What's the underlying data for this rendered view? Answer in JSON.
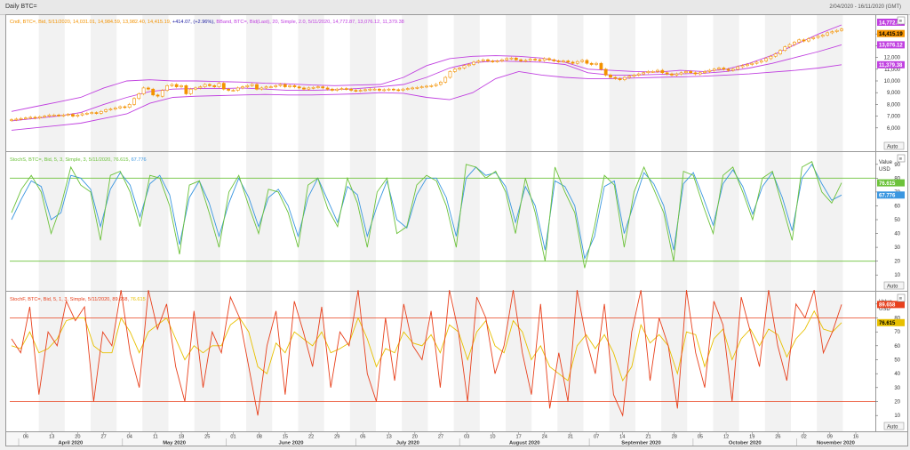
{
  "window": {
    "title": "Daily BTC=",
    "date_range": "2/04/2020 - 16/11/2020 (GMT)"
  },
  "colors": {
    "candle": "#f39200",
    "bband": "#c040e0",
    "stoch_k": "#6cc23a",
    "stoch_d": "#3a96e0",
    "stochf_k": "#e8401c",
    "stochf_d": "#e8c000",
    "level": "#6cc23a",
    "level_f": "#e8401c",
    "band": "#f2f2f2"
  },
  "panes": [
    {
      "id": "price",
      "legend": [
        {
          "text": "Cndl, BTC=, Bid, 5/11/2020, 14,031.01, 14,984.59, 13,982.40, 14,415.19,",
          "color": "#f39200"
        },
        {
          "text": "+414.07, (+2.96%),",
          "color": "#1a1aa0"
        },
        {
          "text": "BBand, BTC=, Bid(Last), 20, Simple, 2.0, 5/11/2020, 14,772.87, 13,076.12, 11,379.38",
          "color": "#c040e0"
        }
      ],
      "ticks": [
        "6,000",
        "7,000",
        "8,000",
        "9,000",
        "10,000",
        "11,000",
        "12,000",
        "13,000",
        "14,000"
      ],
      "value_tags": [
        {
          "text": "14,772.87",
          "bg": "#c040e0",
          "fg": "#ffffff"
        },
        {
          "text": "14,415.19",
          "bg": "#f39200",
          "fg": "#000000"
        },
        {
          "text": "13,076.12",
          "bg": "#c040e0",
          "fg": "#ffffff"
        },
        {
          "text": "11,379.38",
          "bg": "#c040e0",
          "fg": "#ffffff"
        }
      ],
      "auto_label": "Auto"
    },
    {
      "id": "stoch",
      "legend": [
        {
          "text": "StochS, BTC=, Bid, 5, 3, Simple, 3, 5/11/2020, 76.615, ",
          "color": "#6cc23a"
        },
        {
          "text": "67.776",
          "color": "#3a96e0"
        }
      ],
      "header": [
        "Value",
        "USD"
      ],
      "ticks": [
        "10",
        "20",
        "30",
        "40",
        "50",
        "60",
        "70",
        "80",
        "90"
      ],
      "value_tags": [
        {
          "text": "76.615",
          "bg": "#6cc23a",
          "fg": "#ffffff"
        },
        {
          "text": "67.776",
          "bg": "#3a96e0",
          "fg": "#ffffff"
        }
      ],
      "auto_label": "Auto"
    },
    {
      "id": "stochf",
      "legend": [
        {
          "text": "StochF, BTC=, Bid, 5, 1, 3, Simple, 5/11/2020, 89.658, ",
          "color": "#e8401c"
        },
        {
          "text": "76.615",
          "color": "#e8c000"
        }
      ],
      "header": [
        "Value",
        "USD"
      ],
      "ticks": [
        "10",
        "20",
        "30",
        "40",
        "50",
        "60",
        "70",
        "80",
        "90"
      ],
      "value_tags": [
        {
          "text": "89.658",
          "bg": "#e8401c",
          "fg": "#ffffff"
        },
        {
          "text": "76.615",
          "bg": "#e8c000",
          "fg": "#000000"
        }
      ],
      "auto_label": "Auto"
    }
  ],
  "x_axis": {
    "days": [
      "06",
      "13",
      "20",
      "27",
      "04",
      "11",
      "18",
      "25",
      "01",
      "08",
      "15",
      "22",
      "29",
      "06",
      "13",
      "20",
      "27",
      "03",
      "10",
      "17",
      "24",
      "31",
      "07",
      "14",
      "21",
      "28",
      "05",
      "12",
      "19",
      "26",
      "02",
      "09",
      "16"
    ],
    "months": [
      "April 2020",
      "May 2020",
      "June 2020",
      "July 2020",
      "August 2020",
      "September 2020",
      "October 2020",
      "November 2020"
    ]
  },
  "chart_data": [
    {
      "type": "candlestick",
      "title": "Daily BTC=",
      "x_start": "2020-04-02",
      "x_end": "2020-11-05",
      "ylim": [
        5000,
        15000
      ],
      "close_approx": [
        6700,
        6750,
        6800,
        6850,
        6900,
        6850,
        6950,
        7000,
        7100,
        7100,
        7050,
        7100,
        7150,
        7000,
        7100,
        7200,
        7250,
        7300,
        7250,
        7400,
        7550,
        7600,
        7700,
        7800,
        7750,
        8000,
        8500,
        8900,
        9400,
        9300,
        8800,
        8700,
        9200,
        9600,
        9700,
        9500,
        9600,
        8900,
        9300,
        9400,
        9500,
        9700,
        9600,
        9500,
        9800,
        9300,
        9200,
        9200,
        9400,
        9500,
        9600,
        9700,
        9300,
        9400,
        9500,
        9500,
        9600,
        9700,
        9500,
        9600,
        9500,
        9400,
        9300,
        9400,
        9450,
        9500,
        9400,
        9300,
        9200,
        9300,
        9350,
        9300,
        9200,
        9150,
        9200,
        9250,
        9300,
        9300,
        9200,
        9250,
        9300,
        9250,
        9200,
        9300,
        9350,
        9400,
        9450,
        9500,
        9550,
        9600,
        9700,
        9900,
        10300,
        10800,
        11000,
        11100,
        11300,
        11400,
        11600,
        11700,
        11800,
        11700,
        11650,
        11700,
        11800,
        11900,
        11950,
        11800,
        11700,
        11750,
        11850,
        11800,
        11750,
        11900,
        11800,
        11700,
        11650,
        11700,
        11600,
        11500,
        11650,
        11750,
        11500,
        11400,
        11500,
        11000,
        10500,
        10300,
        10200,
        10100,
        10300,
        10400,
        10500,
        10600,
        10700,
        10800,
        10800,
        10900,
        10700,
        10600,
        10500,
        10600,
        10700,
        10800,
        10700,
        10600,
        10700,
        10800,
        10900,
        11000,
        11100,
        11000,
        10900,
        11000,
        11200,
        11300,
        11400,
        11500,
        11600,
        11700,
        11900,
        12100,
        12300,
        12600,
        12900,
        13100,
        13300,
        13500,
        13400,
        13600,
        13700,
        13800,
        13900,
        14100,
        14200,
        14300,
        14415
      ],
      "bband_upper_approx": [
        7400,
        7800,
        8200,
        8600,
        9400,
        10000,
        10100,
        10000,
        10000,
        9950,
        9900,
        9800,
        9750,
        9650,
        9600,
        9650,
        9700,
        10300,
        11300,
        11900,
        12100,
        12150,
        12100,
        11950,
        11600,
        11000,
        10900,
        10800,
        10750,
        10900,
        10800,
        11000,
        11500,
        12200,
        13100,
        14000,
        14772.87
      ],
      "bband_middle_approx": [
        6600,
        6800,
        7000,
        7300,
        8000,
        8600,
        9100,
        9300,
        9350,
        9350,
        9400,
        9300,
        9200,
        9200,
        9250,
        9350,
        9500,
        9700,
        10300,
        11100,
        11550,
        11700,
        11650,
        11600,
        11400,
        10700,
        10500,
        10500,
        10550,
        10600,
        10650,
        10800,
        11100,
        11500,
        12000,
        12500,
        13076.12
      ],
      "bband_lower_approx": [
        5800,
        6000,
        6200,
        6400,
        6800,
        7200,
        8100,
        8600,
        8700,
        8750,
        8800,
        8850,
        8800,
        8800,
        8850,
        8900,
        9000,
        8950,
        8600,
        8400,
        9000,
        10200,
        10800,
        10500,
        10300,
        10200,
        10200,
        10250,
        10300,
        10350,
        10400,
        10500,
        10600,
        10750,
        10900,
        11100,
        11379.38
      ]
    },
    {
      "type": "line",
      "title": "StochS, BTC=, Bid, 5, 3, Simple, 3",
      "ylim": [
        5,
        95
      ],
      "levels": [
        20,
        80
      ],
      "series": [
        {
          "name": "StochS %K",
          "color": "#6cc23a",
          "values_approx": [
            55,
            72,
            82,
            70,
            40,
            60,
            88,
            75,
            70,
            35,
            82,
            85,
            70,
            45,
            82,
            80,
            60,
            25,
            75,
            78,
            55,
            30,
            70,
            82,
            60,
            40,
            72,
            70,
            55,
            30,
            75,
            80,
            58,
            45,
            80,
            62,
            30,
            70,
            80,
            40,
            45,
            75,
            82,
            78,
            60,
            30,
            90,
            88,
            80,
            85,
            70,
            40,
            80,
            55,
            20,
            88,
            70,
            55,
            15,
            45,
            82,
            75,
            30,
            70,
            88,
            72,
            55,
            20,
            85,
            82,
            60,
            40,
            82,
            88,
            70,
            50,
            80,
            85,
            60,
            35,
            88,
            92,
            70,
            62,
            76.615
          ]
        },
        {
          "name": "StochS %D",
          "color": "#3a96e0",
          "values_approx": [
            50,
            65,
            78,
            74,
            50,
            55,
            82,
            80,
            72,
            45,
            72,
            84,
            75,
            52,
            76,
            82,
            68,
            32,
            66,
            78,
            62,
            38,
            62,
            80,
            66,
            45,
            66,
            72,
            60,
            38,
            66,
            80,
            64,
            48,
            74,
            68,
            38,
            60,
            78,
            50,
            44,
            68,
            80,
            80,
            66,
            38,
            80,
            88,
            82,
            84,
            74,
            48,
            74,
            60,
            28,
            78,
            74,
            60,
            22,
            38,
            74,
            78,
            40,
            62,
            84,
            76,
            60,
            28,
            76,
            84,
            66,
            46,
            76,
            86,
            74,
            54,
            74,
            84,
            66,
            42,
            80,
            90,
            76,
            64,
            67.776
          ]
        }
      ]
    },
    {
      "type": "line",
      "title": "StochF, BTC=, Bid, 5, 1, 3, Simple",
      "ylim": [
        5,
        95
      ],
      "levels": [
        20,
        80
      ],
      "series": [
        {
          "name": "StochF %K",
          "color": "#e8401c",
          "values_approx": [
            65,
            55,
            88,
            25,
            70,
            60,
            92,
            78,
            88,
            20,
            70,
            60,
            100,
            55,
            30,
            100,
            72,
            90,
            45,
            20,
            85,
            30,
            70,
            55,
            95,
            80,
            45,
            10,
            60,
            85,
            25,
            92,
            70,
            45,
            88,
            30,
            70,
            60,
            100,
            40,
            20,
            80,
            35,
            90,
            60,
            50,
            85,
            30,
            100,
            70,
            20,
            95,
            80,
            40,
            60,
            100,
            55,
            25,
            90,
            15,
            55,
            20,
            100,
            65,
            40,
            90,
            25,
            10,
            70,
            100,
            35,
            80,
            60,
            15,
            100,
            55,
            30,
            92,
            75,
            20,
            95,
            70,
            45,
            100,
            60,
            35,
            90,
            80,
            100,
            55,
            70,
            89.658
          ]
        },
        {
          "name": "StochF %D",
          "color": "#e8c000",
          "values_approx": [
            60,
            58,
            70,
            55,
            58,
            65,
            78,
            80,
            80,
            60,
            55,
            55,
            80,
            70,
            55,
            70,
            75,
            80,
            65,
            50,
            60,
            55,
            60,
            60,
            75,
            80,
            70,
            45,
            40,
            62,
            55,
            70,
            65,
            60,
            70,
            55,
            58,
            62,
            80,
            65,
            45,
            58,
            55,
            70,
            62,
            60,
            68,
            55,
            75,
            70,
            50,
            70,
            78,
            60,
            55,
            78,
            70,
            50,
            60,
            45,
            40,
            35,
            60,
            68,
            58,
            68,
            55,
            35,
            45,
            75,
            62,
            68,
            60,
            40,
            70,
            68,
            45,
            65,
            72,
            50,
            65,
            72,
            60,
            72,
            68,
            52,
            65,
            72,
            85,
            72,
            70,
            76.615
          ]
        }
      ]
    }
  ]
}
